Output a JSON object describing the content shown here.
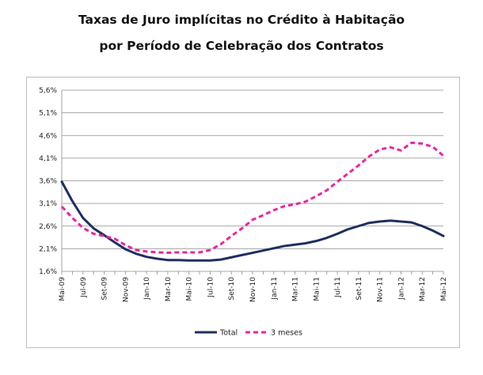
{
  "chart_data": {
    "type": "line",
    "title_line_1": "Taxas de Juro implícitas no Crédito à Habitação",
    "title_line_2": "por Período de Celebração dos Contratos",
    "xlabel": "",
    "ylabel": "",
    "y_ticks": [
      "5,6%",
      "5,1%",
      "4,6%",
      "4,1%",
      "3,6%",
      "3,1%",
      "2,6%",
      "2,1%",
      "1,6%"
    ],
    "ylim": [
      1.6,
      5.6
    ],
    "grid": true,
    "legend_position": "bottom",
    "categories": [
      "Mai-09",
      "Jun-09",
      "Jul-09",
      "Ago-09",
      "Set-09",
      "Out-09",
      "Nov-09",
      "Dez-09",
      "Jan-10",
      "Fev-10",
      "Mar-10",
      "Abr-10",
      "Mai-10",
      "Jun-10",
      "Jul-10",
      "Ago-10",
      "Set-10",
      "Out-10",
      "Nov-10",
      "Dez-10",
      "Jan-11",
      "Fev-11",
      "Mar-11",
      "Abr-11",
      "Mai-11",
      "Jun-11",
      "Jul-11",
      "Ago-11",
      "Set-11",
      "Out-11",
      "Nov-11",
      "Dez-11",
      "Jan-12",
      "Fev-12",
      "Mar-12",
      "Abr-12",
      "Mai-12"
    ],
    "tick_labels": [
      "Mai-09",
      "Jul-09",
      "Set-09",
      "Nov-09",
      "Jan-10",
      "Mar-10",
      "Mai-10",
      "Jul-10",
      "Set-10",
      "Nov-10",
      "Jan-11",
      "Mar-11",
      "Mai-11",
      "Jul-11",
      "Set-11",
      "Nov-11",
      "Jan-12",
      "Mar-12",
      "Mai-12"
    ],
    "series": [
      {
        "name": "Total",
        "color": "#1f2f5f",
        "style": "solid",
        "values": [
          3.58,
          3.15,
          2.78,
          2.55,
          2.4,
          2.24,
          2.09,
          1.99,
          1.92,
          1.88,
          1.85,
          1.85,
          1.84,
          1.84,
          1.84,
          1.86,
          1.91,
          1.96,
          2.01,
          2.06,
          2.11,
          2.16,
          2.19,
          2.22,
          2.27,
          2.34,
          2.43,
          2.53,
          2.6,
          2.67,
          2.7,
          2.72,
          2.7,
          2.68,
          2.6,
          2.5,
          2.38
        ]
      },
      {
        "name": "3 meses",
        "color": "#e8279d",
        "style": "dashed",
        "values": [
          3.03,
          2.78,
          2.56,
          2.43,
          2.38,
          2.32,
          2.18,
          2.07,
          2.04,
          2.02,
          2.01,
          2.02,
          2.02,
          2.02,
          2.07,
          2.2,
          2.38,
          2.55,
          2.74,
          2.84,
          2.95,
          3.04,
          3.08,
          3.14,
          3.26,
          3.39,
          3.58,
          3.76,
          3.94,
          4.14,
          4.29,
          4.34,
          4.27,
          4.44,
          4.42,
          4.35,
          4.15
        ]
      }
    ]
  }
}
